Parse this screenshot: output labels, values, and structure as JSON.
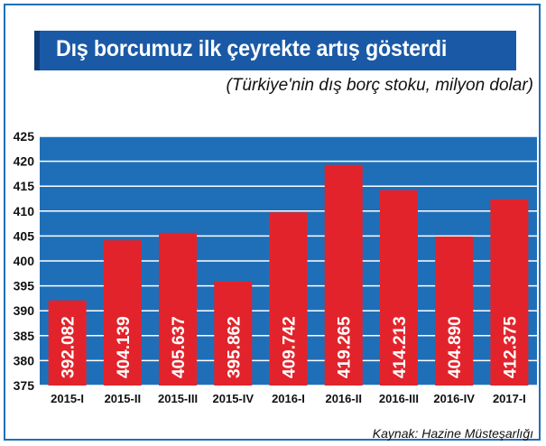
{
  "title": "Dış borcumuz ilk çeyrekte artış gösterdi",
  "subtitle": "(Türkiye'nin dış borç stoku, milyon dolar)",
  "source": "Kaynak: Hazine Müsteşarlığı",
  "colors": {
    "bar": "#e3232b",
    "plot_bg": "#1f6fb8",
    "title_bg": "#1a59a6",
    "grid": "#ffffff"
  },
  "chart_data": {
    "type": "bar",
    "title": "Dış borcumuz ilk çeyrekte artış gösterdi",
    "subtitle": "(Türkiye'nin dış borç stoku, milyon dolar)",
    "categories": [
      "2015-I",
      "2015-II",
      "2015-III",
      "2015-IV",
      "2016-I",
      "2016-II",
      "2016-III",
      "2016-IV",
      "2017-I"
    ],
    "values": [
      392082,
      404139,
      405637,
      395862,
      409742,
      419265,
      414213,
      404890,
      412375
    ],
    "value_labels": [
      "392.082",
      "404.139",
      "405.637",
      "395.862",
      "409.742",
      "419.265",
      "414.213",
      "404.890",
      "412.375"
    ],
    "yticks": [
      375,
      380,
      385,
      390,
      395,
      400,
      405,
      410,
      415,
      420,
      425
    ],
    "ylim": [
      375000,
      425000
    ],
    "grid": true,
    "legend": "none"
  }
}
